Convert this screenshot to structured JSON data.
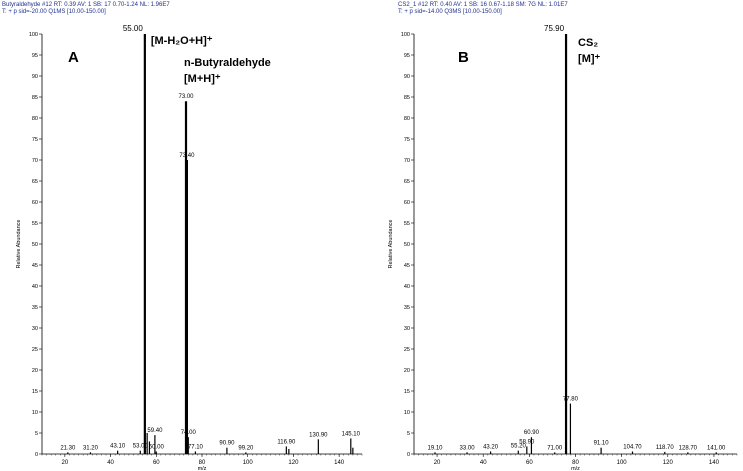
{
  "panels": [
    {
      "header_line1": "Butyraldehyde #12  RT: 0.39  AV: 1  SB: 17 0.70-1.24  NL: 1.96E7",
      "header_line2": "T: + p sid=-20.00  Q1MS [10.00-150.00]",
      "letter": "A",
      "ylabel": "Relative Abundance",
      "xlabel": "m/z",
      "annotations": [
        {
          "text": "[M-H₂O+H]⁺",
          "near": 55.0
        },
        {
          "text": "n-Butyraldehyde",
          "near": 73.0
        },
        {
          "text": "[M+H]⁺",
          "near": 73.0
        }
      ]
    },
    {
      "header_line1": "CS2_1 #12  RT: 0.40  AV: 1  SB: 16 0.67-1.18  SM: 7G  NL: 1.01E7",
      "header_line2": "T: + p sid=-14.00  Q3MS [10.00-150.00]",
      "letter": "B",
      "ylabel": "Relative Abundance",
      "xlabel": "m/z",
      "annotations": [
        {
          "text": "CS₂",
          "near": 75.9
        },
        {
          "text": "[M]⁺",
          "near": 75.9
        }
      ]
    }
  ],
  "chart_data": [
    {
      "type": "bar",
      "title": "A",
      "xlabel": "m/z",
      "ylabel": "Relative Abundance",
      "xlim": [
        10,
        150
      ],
      "ylim": [
        0,
        100
      ],
      "xticks": [
        20,
        40,
        60,
        80,
        100,
        120,
        140
      ],
      "yticks": [
        0,
        5,
        10,
        15,
        20,
        25,
        30,
        35,
        40,
        45,
        50,
        55,
        60,
        65,
        70,
        75,
        80,
        85,
        90,
        95,
        100
      ],
      "peaks": [
        {
          "x": 21.3,
          "y": 0.4,
          "label": "21.30"
        },
        {
          "x": 31.2,
          "y": 0.4,
          "label": "31.20"
        },
        {
          "x": 43.1,
          "y": 0.8,
          "label": "43.10"
        },
        {
          "x": 53.0,
          "y": 0.8,
          "label": "53.00"
        },
        {
          "x": 55.0,
          "y": 100,
          "label": "55.00"
        },
        {
          "x": 56.0,
          "y": 5,
          "label": ""
        },
        {
          "x": 57.0,
          "y": 3,
          "label": ""
        },
        {
          "x": 59.4,
          "y": 4.5,
          "label": "59.40"
        },
        {
          "x": 60.0,
          "y": 0.6,
          "label": "60.00"
        },
        {
          "x": 73.0,
          "y": 84,
          "label": "73.00"
        },
        {
          "x": 73.4,
          "y": 70,
          "label": "73.40"
        },
        {
          "x": 74.0,
          "y": 4,
          "label": "74.00"
        },
        {
          "x": 77.1,
          "y": 0.6,
          "label": "77.10"
        },
        {
          "x": 90.9,
          "y": 1.5,
          "label": "90.90"
        },
        {
          "x": 99.2,
          "y": 0.4,
          "label": "99.20"
        },
        {
          "x": 116.9,
          "y": 1.8,
          "label": "116.90"
        },
        {
          "x": 118.0,
          "y": 1.2,
          "label": ""
        },
        {
          "x": 130.9,
          "y": 3.5,
          "label": "130.90"
        },
        {
          "x": 145.1,
          "y": 3.7,
          "label": "145.10"
        },
        {
          "x": 146.0,
          "y": 1.5,
          "label": ""
        }
      ]
    },
    {
      "type": "bar",
      "title": "B",
      "xlabel": "m/z",
      "ylabel": "Relative Abundance",
      "xlim": [
        10,
        150
      ],
      "ylim": [
        0,
        100
      ],
      "xticks": [
        20,
        40,
        60,
        80,
        100,
        120,
        140
      ],
      "yticks": [
        0,
        5,
        10,
        15,
        20,
        25,
        30,
        35,
        40,
        45,
        50,
        55,
        60,
        65,
        70,
        75,
        80,
        85,
        90,
        95,
        100
      ],
      "peaks": [
        {
          "x": 19.1,
          "y": 0.4,
          "label": "19.10"
        },
        {
          "x": 33.0,
          "y": 0.4,
          "label": "33.00"
        },
        {
          "x": 43.2,
          "y": 0.6,
          "label": "43.20"
        },
        {
          "x": 55.2,
          "y": 0.8,
          "label": "55.20"
        },
        {
          "x": 58.9,
          "y": 1.8,
          "label": "58.90"
        },
        {
          "x": 60.9,
          "y": 4,
          "label": "60.90"
        },
        {
          "x": 71.0,
          "y": 0.4,
          "label": "71.00"
        },
        {
          "x": 75.9,
          "y": 100,
          "label": "75.90"
        },
        {
          "x": 77.8,
          "y": 12,
          "label": "77.80"
        },
        {
          "x": 91.1,
          "y": 1.5,
          "label": "91.10"
        },
        {
          "x": 104.7,
          "y": 0.6,
          "label": "104.70"
        },
        {
          "x": 118.7,
          "y": 0.5,
          "label": "118.70"
        },
        {
          "x": 128.7,
          "y": 0.4,
          "label": "128.70"
        },
        {
          "x": 141.0,
          "y": 0.4,
          "label": "141.00"
        }
      ]
    }
  ]
}
